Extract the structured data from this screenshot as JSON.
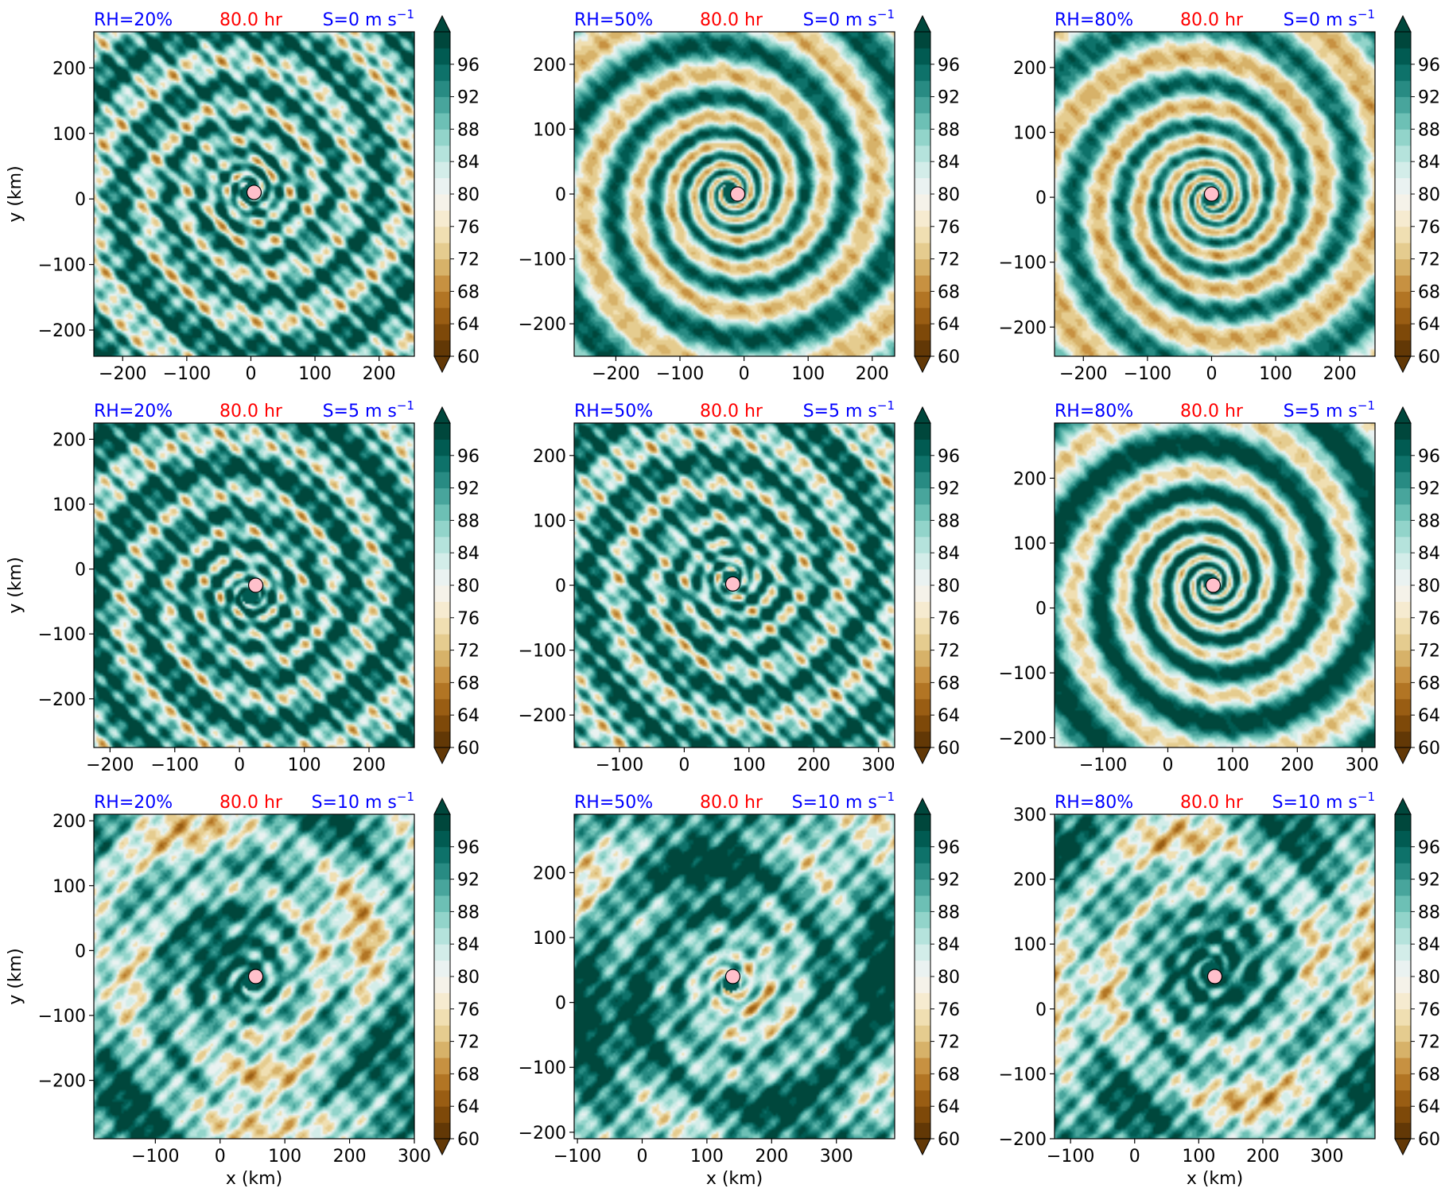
{
  "figure": {
    "colors": {
      "label_blue": "#0000ff",
      "time_red": "#ff0000",
      "center_marker": "#ffc0cb"
    }
  },
  "colorbar": {
    "levels": [
      60,
      62,
      64,
      66,
      68,
      70,
      72,
      74,
      76,
      78,
      80,
      82,
      84,
      86,
      88,
      90,
      92,
      94,
      96,
      98,
      100
    ],
    "tick_labels": [
      "96",
      "92",
      "88",
      "84",
      "80",
      "76",
      "72",
      "68",
      "64",
      "60"
    ],
    "tick_values": [
      96,
      92,
      88,
      84,
      80,
      76,
      72,
      68,
      64,
      60
    ],
    "colormap": "BrBG",
    "extend": "both"
  },
  "chart_data": [
    {
      "type": "heatmap",
      "row": 0,
      "col": 0,
      "rh_label": "RH=20%",
      "time_label": "80.0 hr",
      "shear_label": "S=0 m s",
      "shear_exp": "−1",
      "ylabel": "y (km)",
      "xlabel": "",
      "xlim": [
        -245,
        255
      ],
      "ylim": [
        -240,
        255
      ],
      "xticks": [
        -200,
        -100,
        0,
        100,
        200
      ],
      "yticks": [
        -200,
        -100,
        0,
        100,
        200
      ],
      "xtick_labels": [
        "−200",
        "−100",
        "0",
        "100",
        "200"
      ],
      "ytick_labels": [
        "−200",
        "−100",
        "0",
        "100",
        "200"
      ],
      "center": [
        5,
        10
      ],
      "dry_fraction": 0.14,
      "pattern": "moist_spiral",
      "seed": 11
    },
    {
      "type": "heatmap",
      "row": 0,
      "col": 1,
      "rh_label": "RH=50%",
      "time_label": "80.0 hr",
      "shear_label": "S=0 m s",
      "shear_exp": "−1",
      "ylabel": "",
      "xlabel": "",
      "xlim": [
        -265,
        235
      ],
      "ylim": [
        -250,
        250
      ],
      "xticks": [
        -200,
        -100,
        0,
        100,
        200
      ],
      "yticks": [
        -200,
        -100,
        0,
        100,
        200
      ],
      "xtick_labels": [
        "−200",
        "−100",
        "0",
        "100",
        "200"
      ],
      "ytick_labels": [
        "−200",
        "−100",
        "0",
        "100",
        "200"
      ],
      "center": [
        -10,
        0
      ],
      "dry_fraction": 0.28,
      "pattern": "dry_spiral",
      "seed": 23
    },
    {
      "type": "heatmap",
      "row": 0,
      "col": 2,
      "rh_label": "RH=80%",
      "time_label": "80.0 hr",
      "shear_label": "S=0 m s",
      "shear_exp": "−1",
      "ylabel": "",
      "xlabel": "",
      "xlim": [
        -245,
        255
      ],
      "ylim": [
        -245,
        255
      ],
      "xticks": [
        -200,
        -100,
        0,
        100,
        200
      ],
      "yticks": [
        -200,
        -100,
        0,
        100,
        200
      ],
      "xtick_labels": [
        "−200",
        "−100",
        "0",
        "100",
        "200"
      ],
      "ytick_labels": [
        "−200",
        "−100",
        "0",
        "100",
        "200"
      ],
      "center": [
        0,
        5
      ],
      "dry_fraction": 0.33,
      "pattern": "dry_spiral",
      "seed": 37
    },
    {
      "type": "heatmap",
      "row": 1,
      "col": 0,
      "rh_label": "RH=20%",
      "time_label": "80.0 hr",
      "shear_label": "S=5 m s",
      "shear_exp": "−1",
      "ylabel": "y (km)",
      "xlabel": "",
      "xlim": [
        -225,
        270
      ],
      "ylim": [
        -275,
        225
      ],
      "xticks": [
        -200,
        -100,
        0,
        100,
        200
      ],
      "yticks": [
        -200,
        -100,
        0,
        100,
        200
      ],
      "xtick_labels": [
        "−200",
        "−100",
        "0",
        "100",
        "200"
      ],
      "ytick_labels": [
        "−200",
        "−100",
        "0",
        "100",
        "200"
      ],
      "center": [
        25,
        -25
      ],
      "dry_fraction": 0.09,
      "pattern": "moist_spiral",
      "seed": 41
    },
    {
      "type": "heatmap",
      "row": 1,
      "col": 1,
      "rh_label": "RH=50%",
      "time_label": "80.0 hr",
      "shear_label": "S=5 m s",
      "shear_exp": "−1",
      "ylabel": "",
      "xlabel": "",
      "xlim": [
        -170,
        325
      ],
      "ylim": [
        -250,
        250
      ],
      "xticks": [
        -100,
        0,
        100,
        200,
        300
      ],
      "yticks": [
        -200,
        -100,
        0,
        100,
        200
      ],
      "xtick_labels": [
        "−100",
        "0",
        "100",
        "200",
        "300"
      ],
      "ytick_labels": [
        "−200",
        "−100",
        "0",
        "100",
        "200"
      ],
      "center": [
        75,
        2
      ],
      "dry_fraction": 0.12,
      "pattern": "moist_spiral",
      "seed": 53
    },
    {
      "type": "heatmap",
      "row": 1,
      "col": 2,
      "rh_label": "RH=80%",
      "time_label": "80.0 hr",
      "shear_label": "S=5 m s",
      "shear_exp": "−1",
      "ylabel": "",
      "xlabel": "",
      "xlim": [
        -175,
        320
      ],
      "ylim": [
        -215,
        285
      ],
      "xticks": [
        -100,
        0,
        100,
        200,
        300
      ],
      "yticks": [
        -200,
        -100,
        0,
        100,
        200
      ],
      "xtick_labels": [
        "−100",
        "0",
        "100",
        "200",
        "300"
      ],
      "ytick_labels": [
        "−200",
        "−100",
        "0",
        "100",
        "200"
      ],
      "center": [
        70,
        35
      ],
      "dry_fraction": 0.17,
      "pattern": "dry_spiral",
      "seed": 67
    },
    {
      "type": "heatmap",
      "row": 2,
      "col": 0,
      "rh_label": "RH=20%",
      "time_label": "80.0 hr",
      "shear_label": "S=10 m s",
      "shear_exp": "−1",
      "ylabel": "y (km)",
      "xlabel": "x (km)",
      "xlim": [
        -195,
        300
      ],
      "ylim": [
        -290,
        210
      ],
      "xticks": [
        -100,
        0,
        100,
        200,
        300
      ],
      "yticks": [
        -200,
        -100,
        0,
        100,
        200
      ],
      "xtick_labels": [
        "−100",
        "0",
        "100",
        "200",
        "300"
      ],
      "ytick_labels": [
        "−200",
        "−100",
        "0",
        "100",
        "200"
      ],
      "center": [
        55,
        -40
      ],
      "dry_fraction": 0.22,
      "pattern": "sheared",
      "seed": 71
    },
    {
      "type": "heatmap",
      "row": 2,
      "col": 1,
      "rh_label": "RH=50%",
      "time_label": "80.0 hr",
      "shear_label": "S=10 m s",
      "shear_exp": "−1",
      "ylabel": "",
      "xlabel": "x (km)",
      "xlim": [
        -105,
        390
      ],
      "ylim": [
        -210,
        290
      ],
      "xticks": [
        -100,
        0,
        100,
        200,
        300
      ],
      "yticks": [
        -200,
        -100,
        0,
        100,
        200
      ],
      "xtick_labels": [
        "−100",
        "0",
        "100",
        "200",
        "300"
      ],
      "ytick_labels": [
        "−200",
        "−100",
        "0",
        "100",
        "200"
      ],
      "center": [
        140,
        40
      ],
      "dry_fraction": 0.1,
      "pattern": "sheared",
      "seed": 83
    },
    {
      "type": "heatmap",
      "row": 2,
      "col": 2,
      "rh_label": "RH=80%",
      "time_label": "80.0 hr",
      "shear_label": "S=10 m s",
      "shear_exp": "−1",
      "ylabel": "",
      "xlabel": "x (km)",
      "xlim": [
        -125,
        375
      ],
      "ylim": [
        -200,
        300
      ],
      "xticks": [
        -100,
        0,
        100,
        200,
        300
      ],
      "yticks": [
        -200,
        -100,
        0,
        100,
        200,
        300
      ],
      "xtick_labels": [
        "−100",
        "0",
        "100",
        "200",
        "300"
      ],
      "ytick_labels": [
        "−200",
        "−100",
        "0",
        "100",
        "200",
        "300"
      ],
      "center": [
        125,
        50
      ],
      "dry_fraction": 0.2,
      "pattern": "sheared",
      "seed": 97
    }
  ]
}
